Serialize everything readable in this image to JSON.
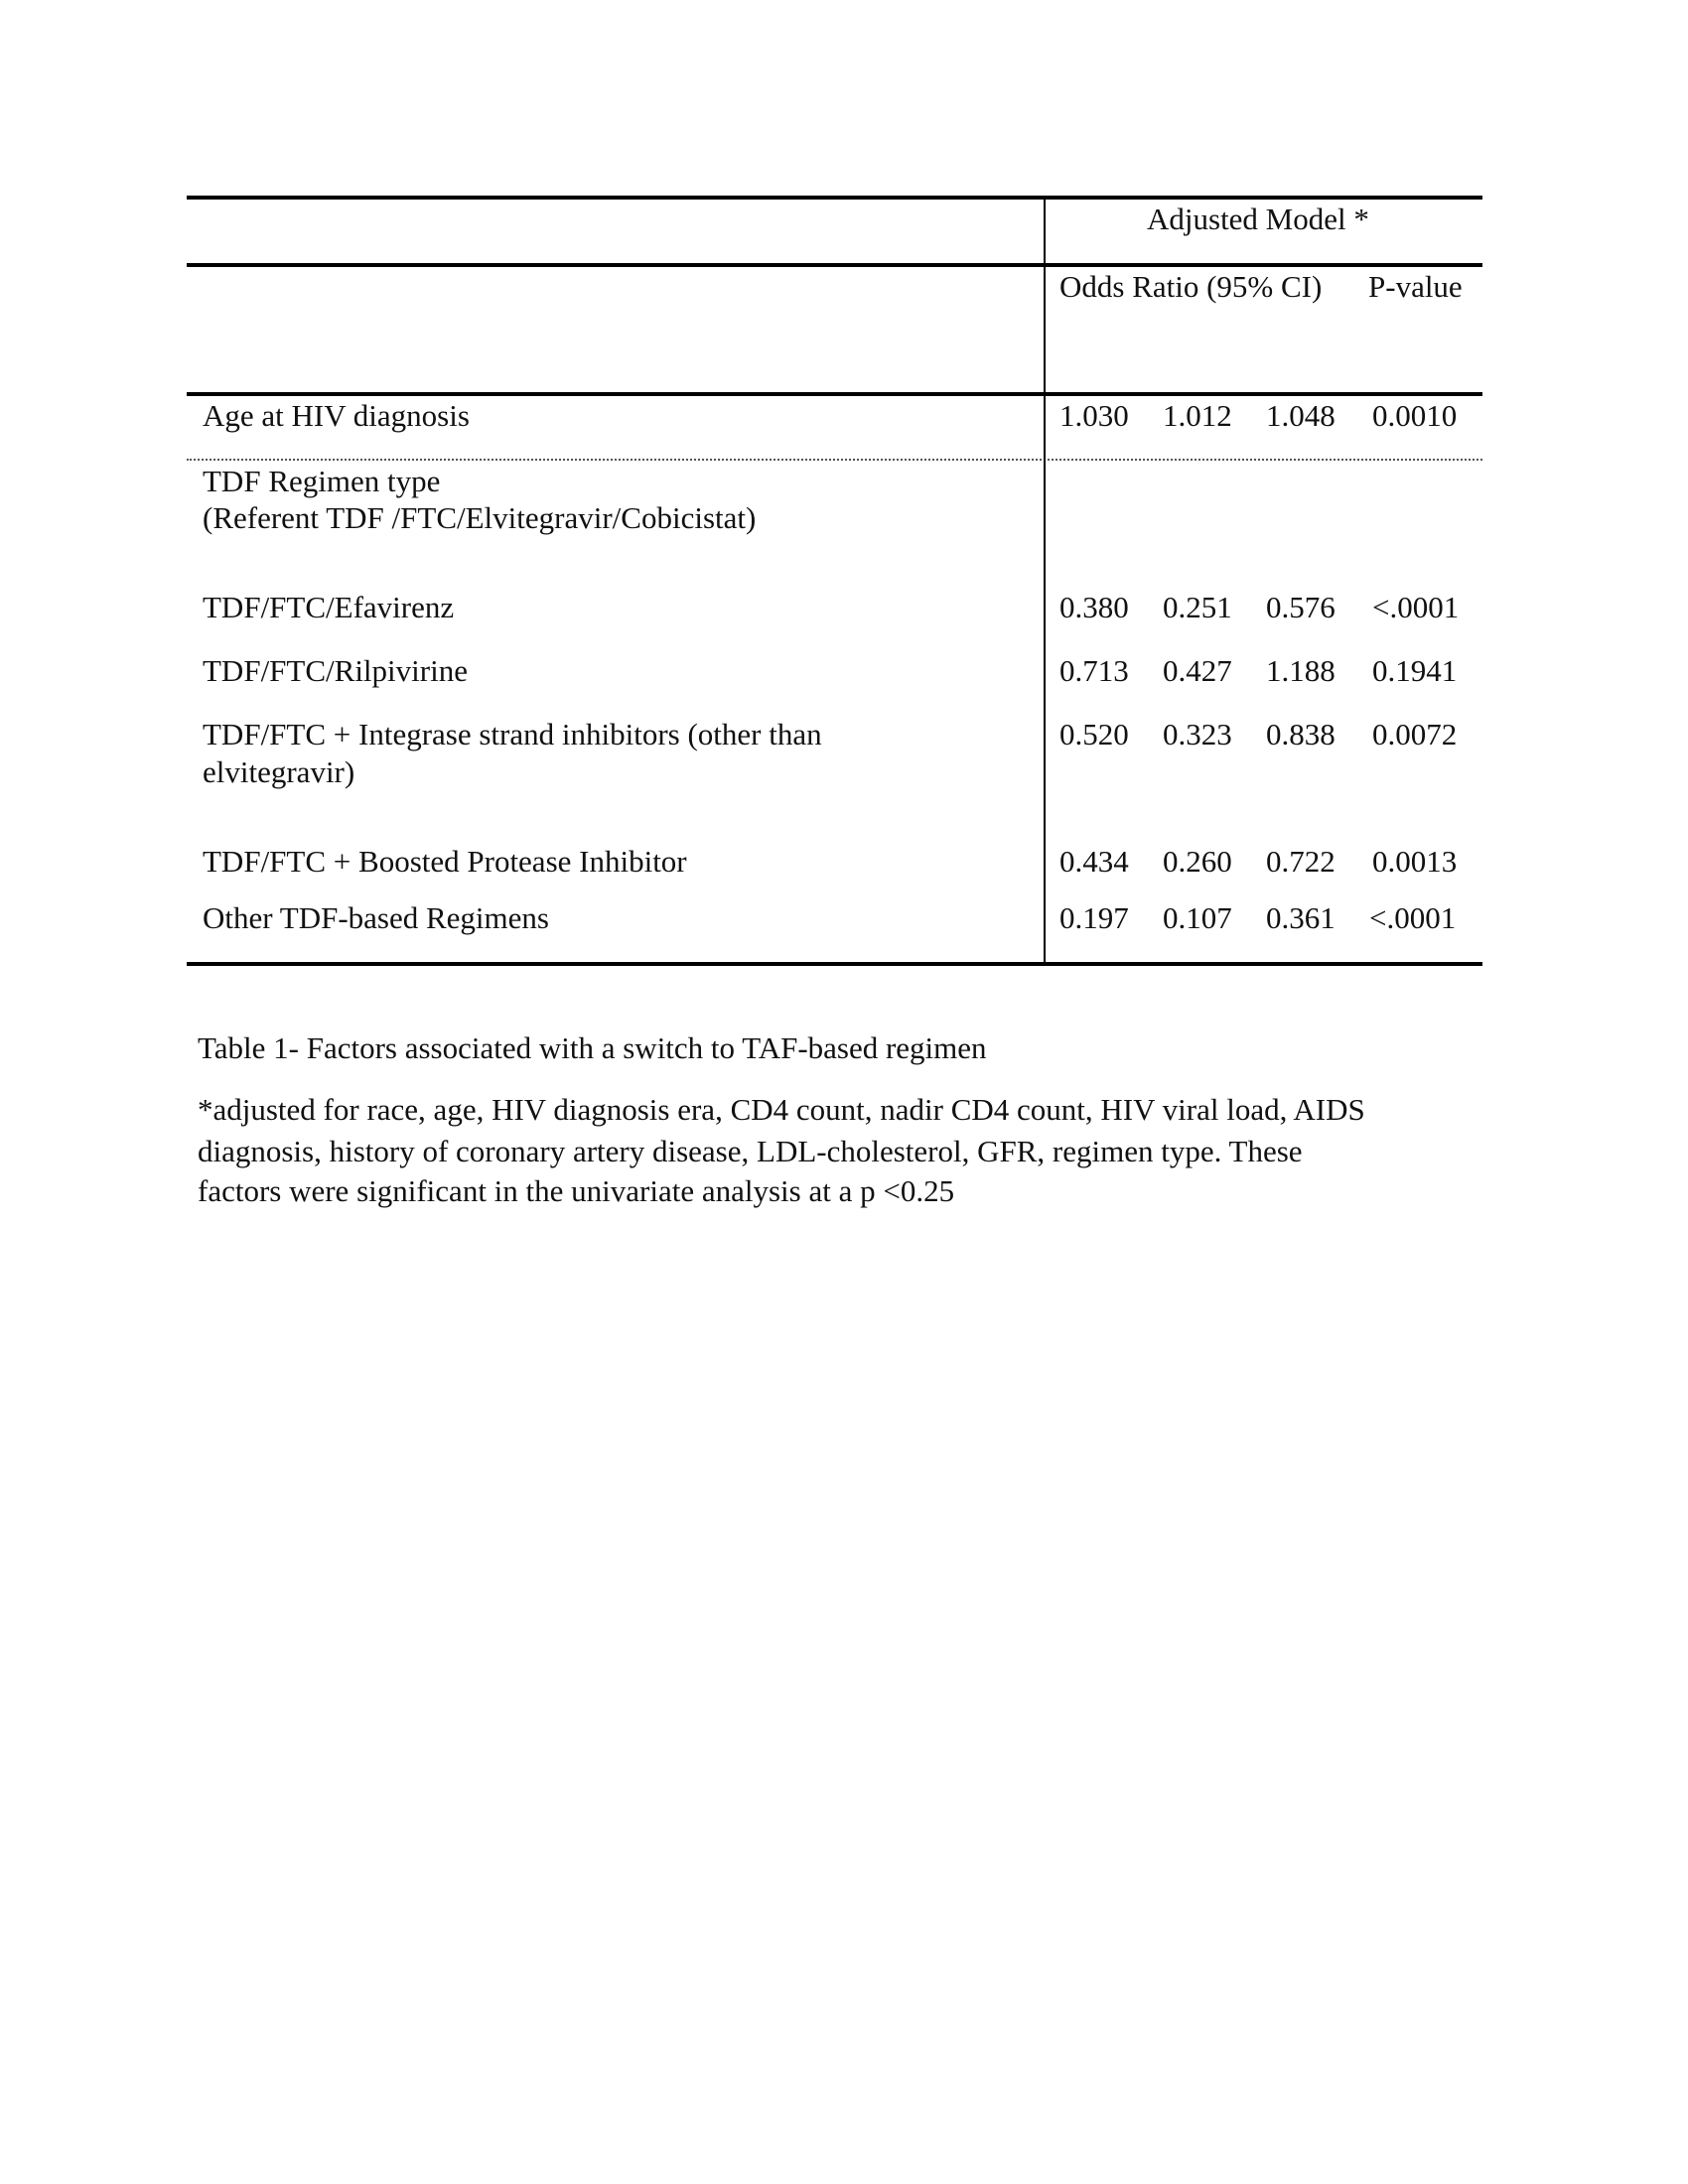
{
  "table": {
    "header": {
      "group_label": "Adjusted Model *",
      "odds_ratio_label": "Odds Ratio (95% CI)",
      "p_value_label": "P-value"
    },
    "rows": [
      {
        "label": "Age at HIV diagnosis",
        "or": "1.030",
        "lower": "1.012",
        "upper": "1.048",
        "p": "0.0010"
      },
      {
        "label": "TDF Regimen type",
        "label2": "(Referent TDF /FTC/Elvitegravir/Cobicistat)"
      },
      {
        "label": "TDF/FTC/Efavirenz",
        "or": "0.380",
        "lower": "0.251",
        "upper": "0.576",
        "p": "<.0001"
      },
      {
        "label": "TDF/FTC/Rilpivirine",
        "or": "0.713",
        "lower": "0.427",
        "upper": "1.188",
        "p": "0.1941"
      },
      {
        "label": "TDF/FTC + Integrase strand inhibitors (other than",
        "label2": "elvitegravir)",
        "or": "0.520",
        "lower": "0.323",
        "upper": "0.838",
        "p": "0.0072"
      },
      {
        "label": "TDF/FTC + Boosted Protease Inhibitor",
        "or": "0.434",
        "lower": "0.260",
        "upper": "0.722",
        "p": "0.0013"
      },
      {
        "label": "Other TDF-based Regimens",
        "or": "0.197",
        "lower": "0.107",
        "upper": "0.361",
        "p": "<.0001"
      }
    ]
  },
  "caption": "Table 1- Factors associated with a switch to TAF-based regimen",
  "footnote": [
    "*adjusted for race, age, HIV diagnosis era, CD4 count, nadir CD4 count, HIV viral load, AIDS",
    "diagnosis, history of coronary artery disease,  LDL-cholesterol, GFR, regimen type. These",
    "factors were significant in the univariate analysis at a p <0.25"
  ]
}
